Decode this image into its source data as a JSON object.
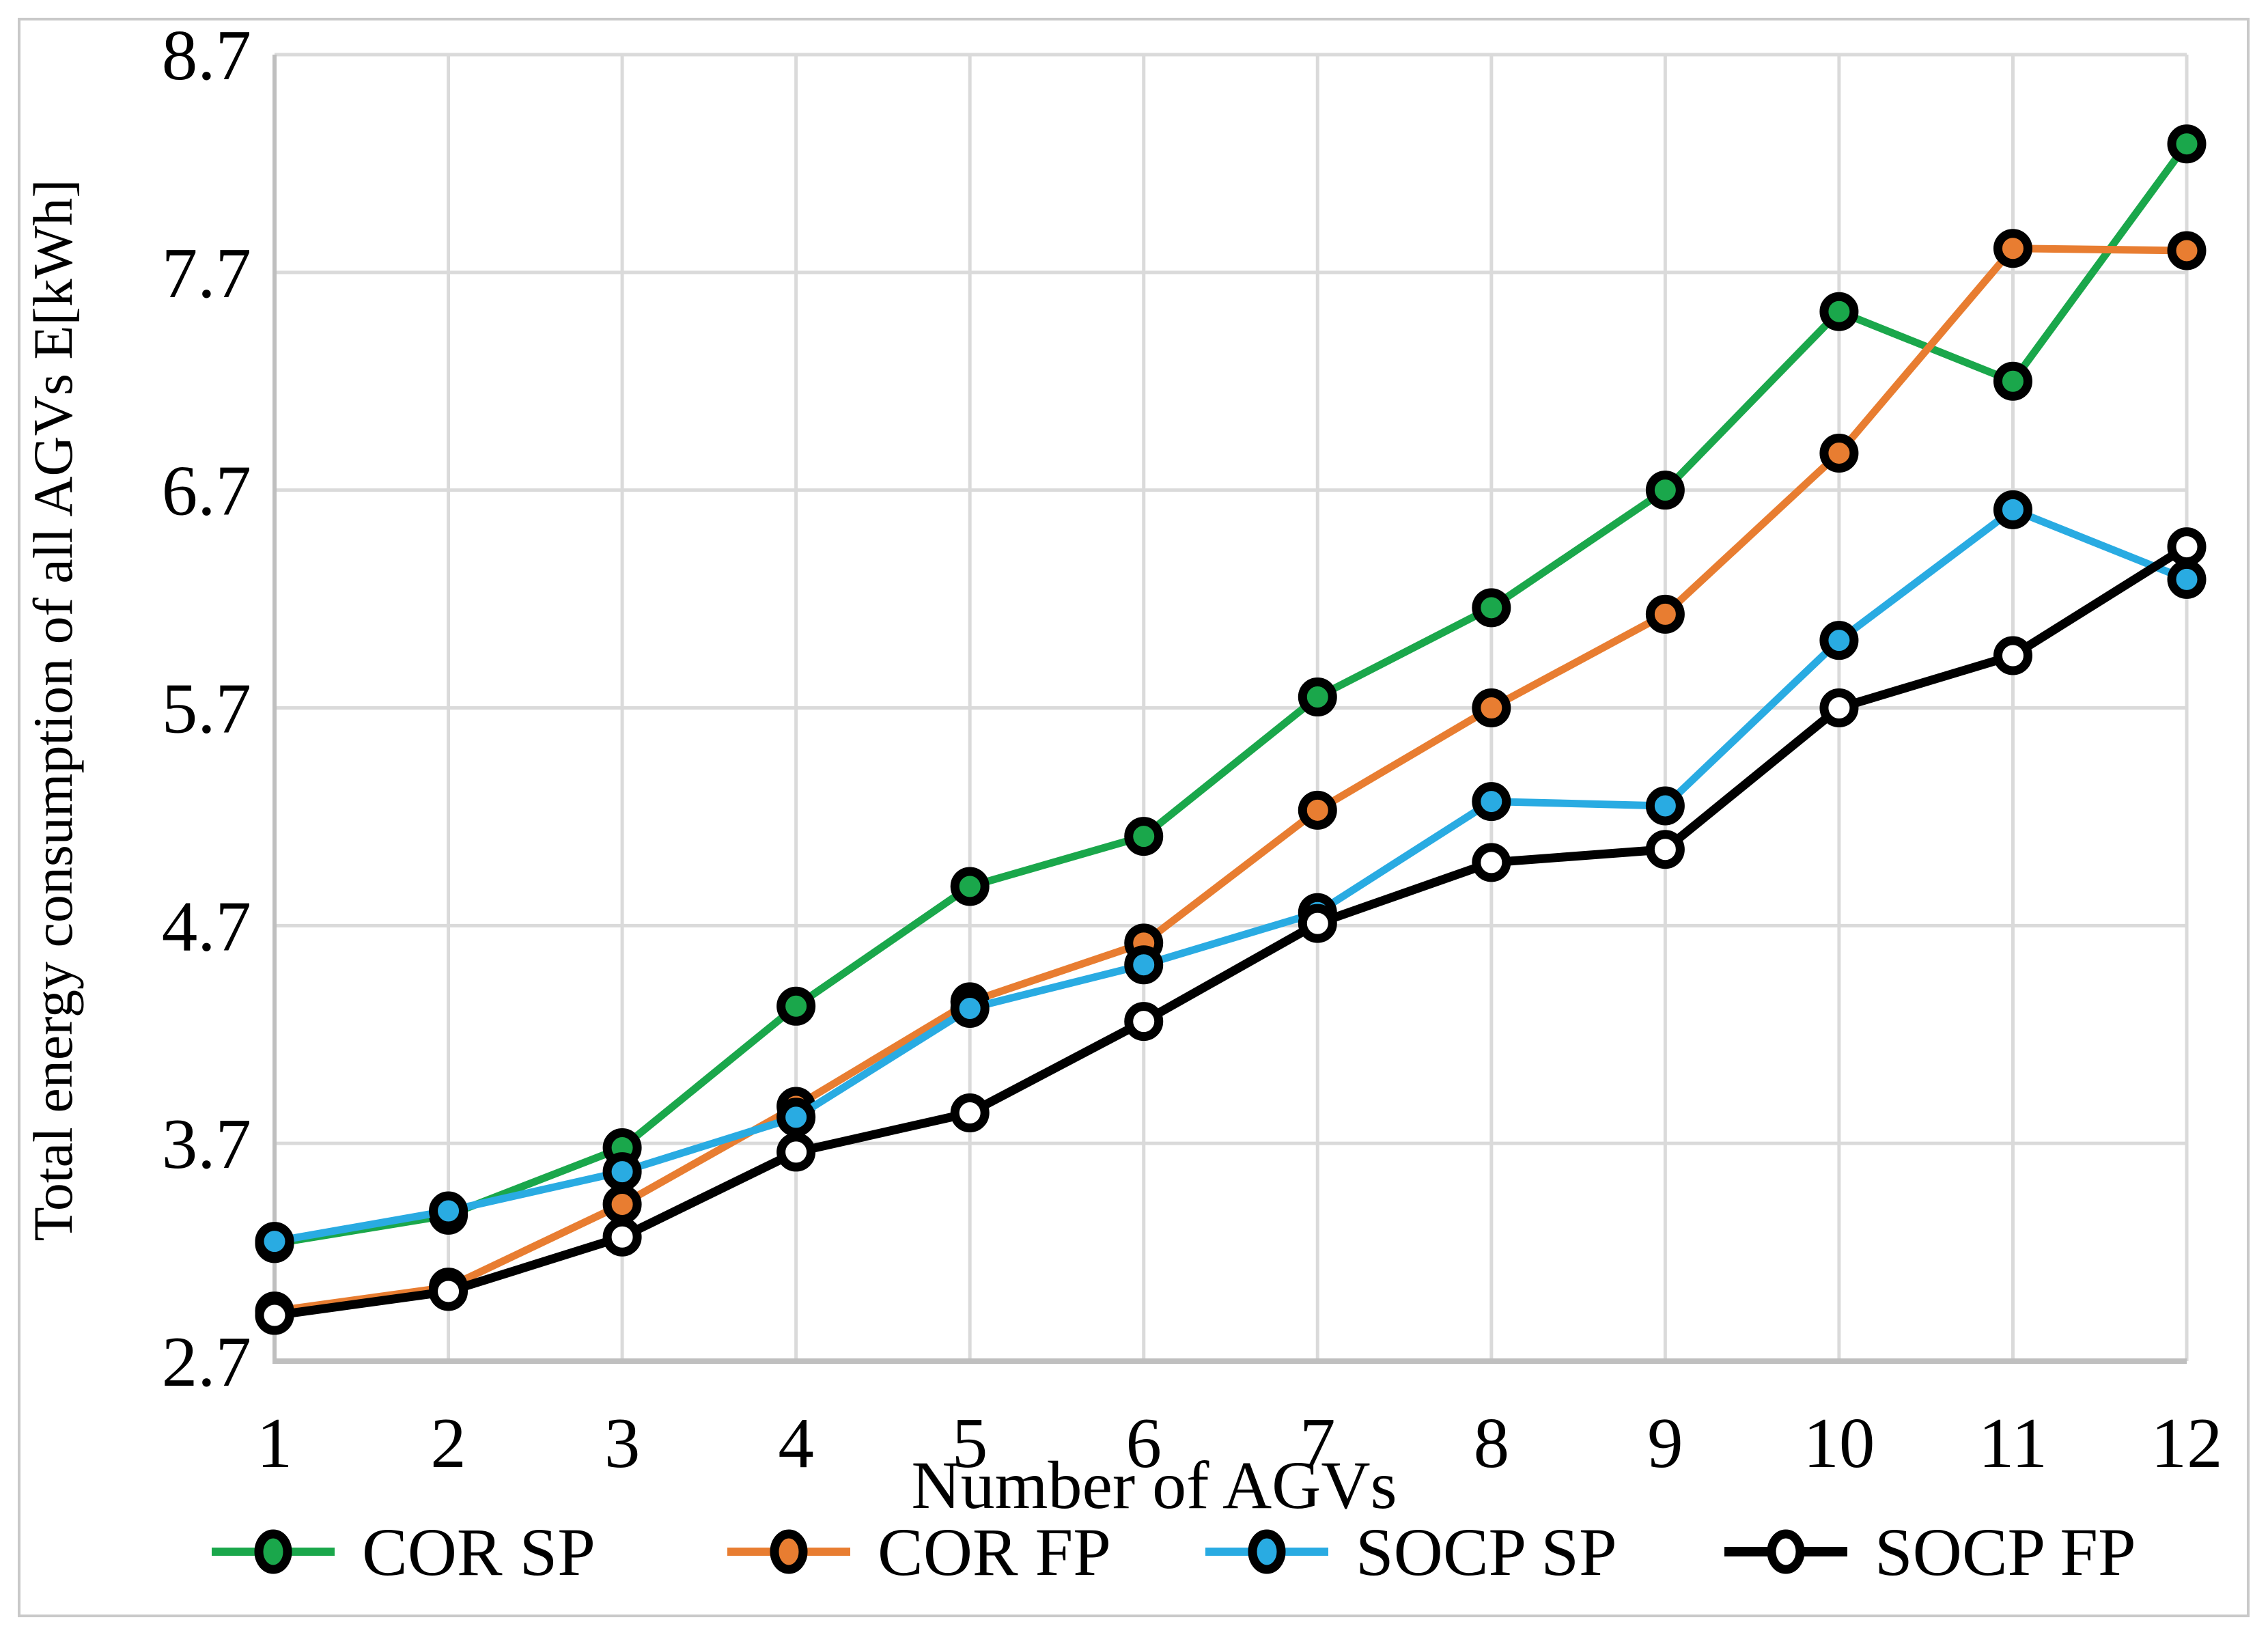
{
  "chart_data": {
    "type": "line",
    "title": "",
    "xlabel": "Number of AGVs",
    "ylabel": "Total energy consumption of all AGVs E[kWh]",
    "categories": [
      1,
      2,
      3,
      4,
      5,
      6,
      7,
      8,
      9,
      10,
      11,
      12
    ],
    "y_ticks": [
      "2.7",
      "3.7",
      "4.7",
      "5.7",
      "6.7",
      "7.7",
      "8.7"
    ],
    "ylim": [
      2.7,
      8.7
    ],
    "grid": true,
    "legend_position": "bottom",
    "series": [
      {
        "name": "COR SP",
        "line_color": "#1AA74B",
        "marker_fill": "#1AA74B",
        "values": [
          3.24,
          3.37,
          3.68,
          4.33,
          4.88,
          5.11,
          5.75,
          6.16,
          6.7,
          7.52,
          7.2,
          8.29
        ]
      },
      {
        "name": "COR FP",
        "line_color": "#E87D31",
        "marker_fill": "#E87D31",
        "values": [
          2.93,
          3.04,
          3.42,
          3.87,
          4.35,
          4.62,
          5.23,
          5.7,
          6.13,
          6.87,
          7.81,
          7.8
        ]
      },
      {
        "name": "SOCP SP",
        "line_color": "#29ABE2",
        "marker_fill": "#29ABE2",
        "values": [
          3.25,
          3.39,
          3.57,
          3.82,
          4.32,
          4.52,
          4.76,
          5.27,
          5.25,
          6.01,
          6.61,
          6.29
        ]
      },
      {
        "name": "SOCP FP",
        "line_color": "#000000",
        "marker_fill": "#FFFFFF",
        "values": [
          2.91,
          3.02,
          3.27,
          3.66,
          3.84,
          4.26,
          4.71,
          4.99,
          5.05,
          5.7,
          5.94,
          6.44
        ]
      }
    ]
  },
  "colors": {
    "background": "#FFFFFF",
    "gridline": "#DADADA",
    "axis_line": "#BFBFBF",
    "chart_border": "#C9C9C9",
    "marker_ring": "#000000",
    "text": "#000000"
  }
}
